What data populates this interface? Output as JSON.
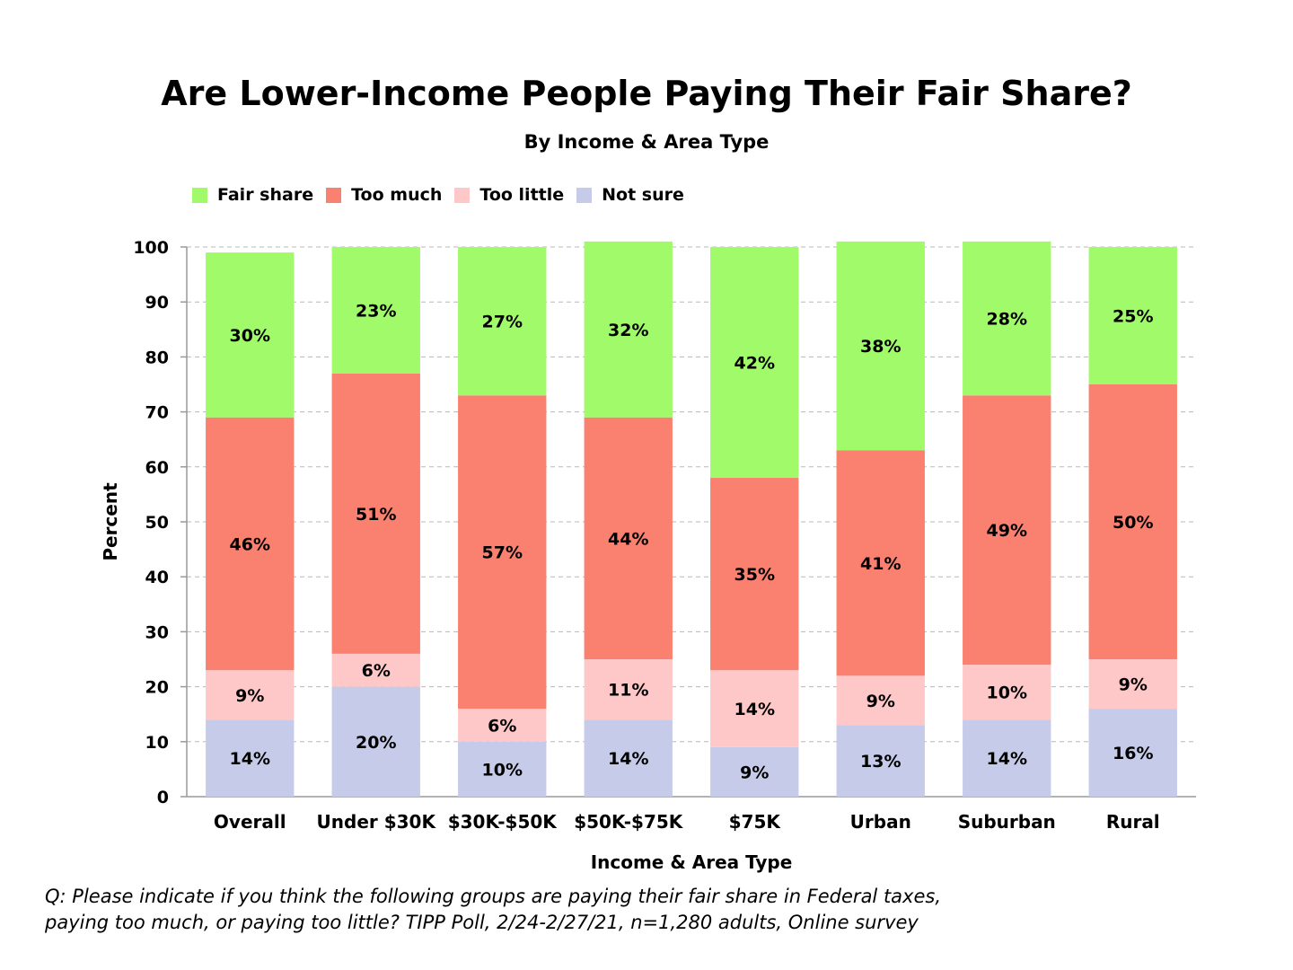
{
  "chart_data": {
    "type": "bar",
    "stacked": true,
    "title": "Are Lower-Income People Paying Their Fair Share?",
    "subtitle": "By Income & Area Type",
    "xlabel": "Income & Area Type",
    "ylabel": "Percent",
    "ylim": [
      0,
      100
    ],
    "yticks": [
      0,
      10,
      20,
      30,
      40,
      50,
      60,
      70,
      80,
      90,
      100
    ],
    "grid": true,
    "legend_position": "top-left",
    "categories": [
      "Overall",
      "Under $30K",
      "$30K-$50K",
      "$50K-$75K",
      "$75K",
      "Urban",
      "Suburban",
      "Rural"
    ],
    "series": [
      {
        "name": "Not sure",
        "color": "#c5cbe8",
        "values": [
          14,
          20,
          10,
          14,
          9,
          13,
          14,
          16
        ],
        "labels": [
          "14%",
          "20%",
          "10%",
          "14%",
          "9%",
          "13%",
          "14%",
          "16%"
        ]
      },
      {
        "name": "Too little",
        "color": "#ffc8c8",
        "values": [
          9,
          6,
          6,
          11,
          14,
          9,
          10,
          9
        ],
        "labels": [
          "9%",
          "6%",
          "6%",
          "11%",
          "14%",
          "9%",
          "10%",
          "9%"
        ]
      },
      {
        "name": "Too much",
        "color": "#fa8070",
        "values": [
          46,
          51,
          57,
          44,
          35,
          41,
          49,
          50
        ],
        "labels": [
          "46%",
          "51%",
          "57%",
          "44%",
          "35%",
          "41%",
          "49%",
          "50%"
        ]
      },
      {
        "name": "Fair share",
        "color": "#a0fa6a",
        "values": [
          30,
          23,
          27,
          32,
          42,
          38,
          28,
          25
        ],
        "labels": [
          "30%",
          "23%",
          "27%",
          "32%",
          "42%",
          "38%",
          "28%",
          "25%"
        ]
      }
    ],
    "legend_order": [
      "Fair share",
      "Too much",
      "Too little",
      "Not sure"
    ]
  },
  "footnote": {
    "line1": "Q:  Please indicate if you think the following groups are paying their fair share in Federal taxes,",
    "line2": "paying too much, or paying too little?  TIPP Poll, 2/24-2/27/21, n=1,280 adults, Online survey"
  }
}
